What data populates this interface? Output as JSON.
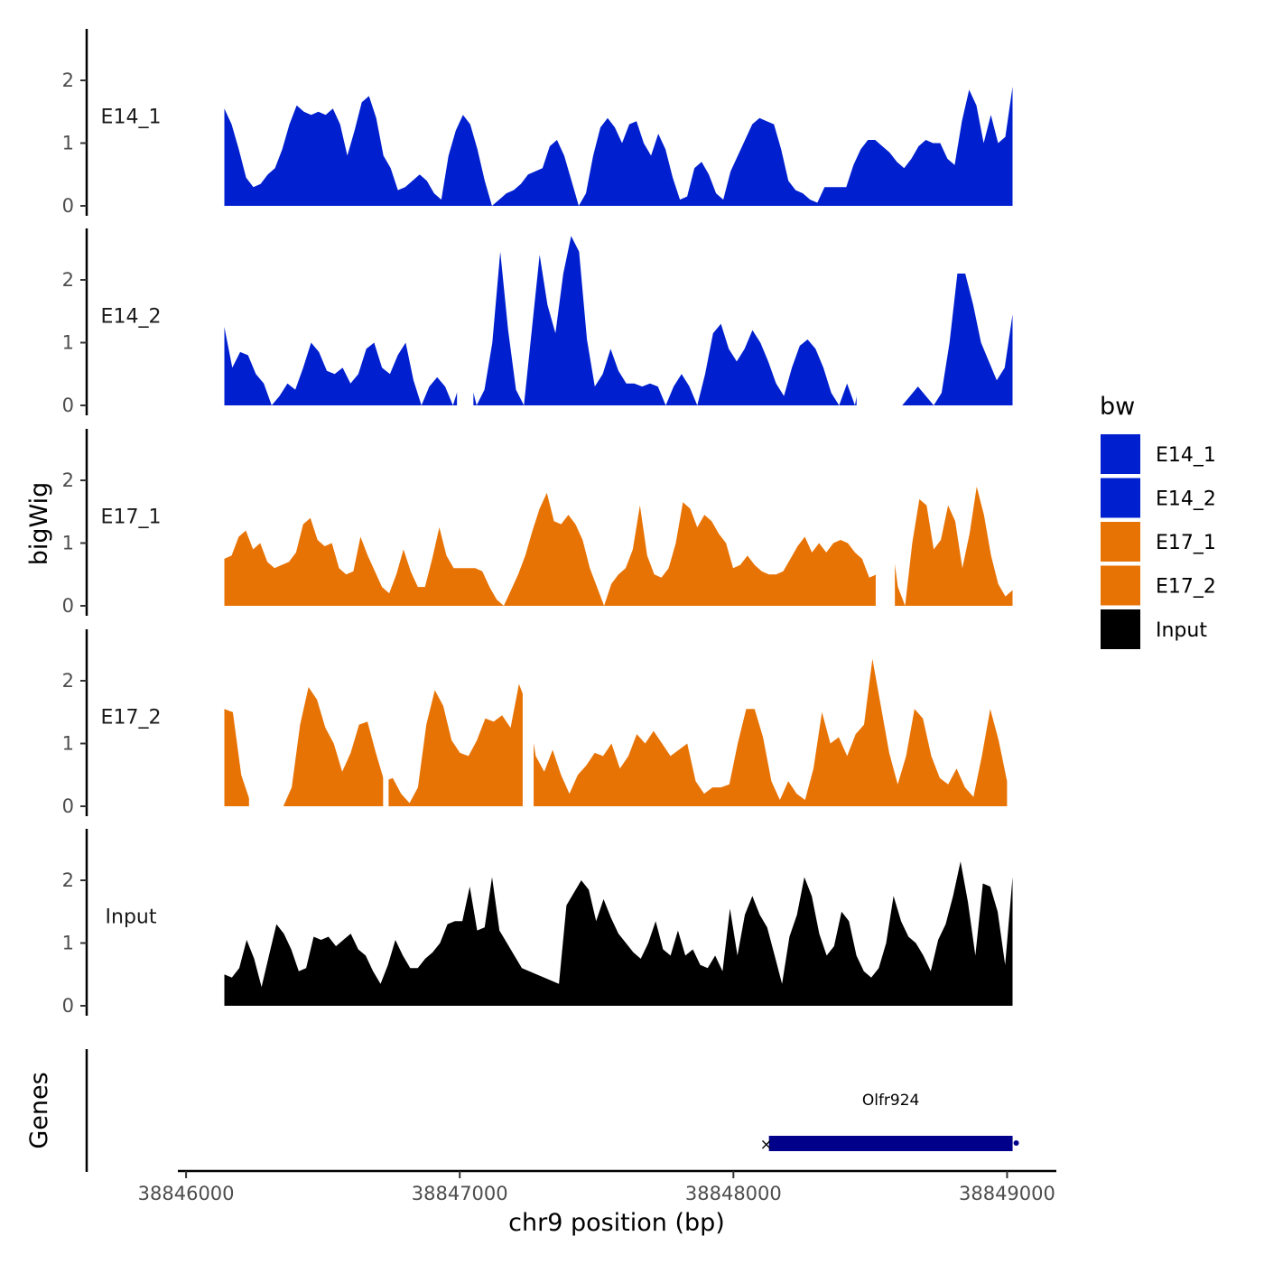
{
  "chart_data": {
    "type": "area",
    "description_free": true,
    "ylabel": "bigWig",
    "xlabel": "chr9 position (bp)",
    "ylim": [
      0,
      2.8
    ],
    "y_ticks": [
      0,
      1,
      2
    ],
    "y_tick_labels": [
      "0",
      "1",
      "2"
    ],
    "xlim": [
      38845970,
      38849180
    ],
    "x_ticks": [
      38846000,
      38847000,
      38848000,
      38849000
    ],
    "x_tick_labels": [
      "38846000",
      "38847000",
      "38848000",
      "38849000"
    ],
    "legend": {
      "title": "bw",
      "position": "right",
      "entries": [
        {
          "label": "E14_1",
          "color": "#0020d0"
        },
        {
          "label": "E14_2",
          "color": "#0020d0"
        },
        {
          "label": "E17_1",
          "color": "#e87305"
        },
        {
          "label": "E17_2",
          "color": "#e87305"
        },
        {
          "label": "Input",
          "color": "#000000"
        }
      ]
    },
    "series": [
      {
        "name": "E14_1",
        "color": "#0020d0",
        "x_start": 38846140,
        "x_end": 38849020,
        "values": [
          1.55,
          1.3,
          0.9,
          0.45,
          0.3,
          0.35,
          0.5,
          0.6,
          0.9,
          1.3,
          1.6,
          1.5,
          1.45,
          1.5,
          1.45,
          1.55,
          1.3,
          0.8,
          1.2,
          1.65,
          1.75,
          1.4,
          0.8,
          0.6,
          0.25,
          0.3,
          0.4,
          0.5,
          0.4,
          0.2,
          0.1,
          0.8,
          1.2,
          1.45,
          1.3,
          0.9,
          0.4,
          0.0,
          0.1,
          0.2,
          0.25,
          0.35,
          0.5,
          0.55,
          0.6,
          0.95,
          1.05,
          0.8,
          0.4,
          0.0,
          0.2,
          0.8,
          1.25,
          1.4,
          1.25,
          1.0,
          1.3,
          1.35,
          1.0,
          0.8,
          1.15,
          0.9,
          0.45,
          0.1,
          0.15,
          0.6,
          0.7,
          0.5,
          0.2,
          0.1,
          0.55,
          0.8,
          1.05,
          1.3,
          1.4,
          1.35,
          1.3,
          0.9,
          0.4,
          0.25,
          0.2,
          0.1,
          0.05,
          0.3,
          0.3,
          0.3,
          0.3,
          0.65,
          0.9,
          1.05,
          1.05,
          0.95,
          0.85,
          0.7,
          0.6,
          0.75,
          0.95,
          1.05,
          1.0,
          1.0,
          0.75,
          0.65,
          1.35,
          1.85,
          1.6,
          1.0,
          1.45,
          1.0,
          1.1,
          1.9
        ],
        "gaps": []
      },
      {
        "name": "E14_2",
        "color": "#0020d0",
        "x_start": 38846140,
        "x_end": 38849020,
        "values": [
          1.25,
          0.6,
          0.85,
          0.8,
          0.5,
          0.35,
          0.0,
          0.15,
          0.35,
          0.25,
          0.6,
          1.0,
          0.85,
          0.55,
          0.5,
          0.6,
          0.35,
          0.5,
          0.9,
          1.0,
          0.6,
          0.5,
          0.8,
          1.0,
          0.4,
          0.0,
          0.3,
          0.45,
          0.3,
          0.0,
          0.4,
          0.5,
          0.0,
          0.25,
          1.0,
          2.45,
          1.2,
          0.25,
          0.0,
          1.2,
          2.4,
          1.6,
          1.15,
          2.1,
          2.7,
          2.45,
          1.05,
          0.3,
          0.5,
          0.9,
          0.55,
          0.35,
          0.35,
          0.3,
          0.35,
          0.3,
          0.0,
          0.3,
          0.5,
          0.3,
          0.0,
          0.5,
          1.15,
          1.3,
          0.9,
          0.7,
          0.9,
          1.2,
          1.0,
          0.7,
          0.35,
          0.15,
          0.6,
          0.95,
          1.05,
          0.9,
          0.6,
          0.2,
          0.0,
          0.35,
          0.0,
          0.65,
          1.0,
          0.0,
          0.0,
          0.0,
          0.0,
          0.15,
          0.3,
          0.15,
          0.0,
          0.2,
          1.0,
          2.1,
          2.1,
          1.6,
          1.0,
          0.7,
          0.4,
          0.6,
          1.45
        ],
        "gaps": [
          [
            38846990,
            38847050
          ],
          [
            38848450,
            38848580
          ]
        ]
      },
      {
        "name": "E17_1",
        "color": "#e87305",
        "x_start": 38846140,
        "x_end": 38849020,
        "values": [
          0.75,
          0.8,
          1.1,
          1.2,
          0.9,
          1.0,
          0.7,
          0.6,
          0.65,
          0.7,
          0.85,
          1.3,
          1.4,
          1.05,
          0.95,
          1.0,
          0.6,
          0.5,
          0.55,
          1.1,
          0.8,
          0.55,
          0.3,
          0.2,
          0.5,
          0.9,
          0.55,
          0.3,
          0.3,
          0.75,
          1.25,
          0.8,
          0.6,
          0.6,
          0.6,
          0.6,
          0.55,
          0.3,
          0.1,
          0.0,
          0.25,
          0.5,
          0.8,
          1.2,
          1.55,
          1.8,
          1.35,
          1.3,
          1.45,
          1.3,
          1.05,
          0.6,
          0.3,
          0.0,
          0.35,
          0.5,
          0.6,
          0.9,
          1.6,
          0.8,
          0.5,
          0.45,
          0.6,
          1.0,
          1.65,
          1.55,
          1.25,
          1.45,
          1.35,
          1.15,
          1.0,
          0.6,
          0.65,
          0.8,
          0.65,
          0.55,
          0.5,
          0.5,
          0.55,
          0.75,
          0.95,
          1.1,
          0.85,
          1.0,
          0.85,
          1.0,
          1.05,
          1.0,
          0.85,
          0.75,
          0.45,
          0.5,
          0.9,
          1.15,
          0.3,
          0.0,
          1.0,
          1.7,
          1.6,
          0.9,
          1.05,
          1.6,
          1.35,
          0.6,
          1.15,
          1.9,
          1.45,
          0.8,
          0.35,
          0.15,
          0.25
        ],
        "gaps": [
          [
            38848520,
            38848590
          ]
        ]
      },
      {
        "name": "E17_2",
        "color": "#e87305",
        "x_start": 38846140,
        "x_end": 38849000,
        "values": [
          1.55,
          1.5,
          0.5,
          0.1,
          0.0,
          0.0,
          0.0,
          0.0,
          0.3,
          1.3,
          1.9,
          1.7,
          1.25,
          1.0,
          0.55,
          0.85,
          1.3,
          1.35,
          0.85,
          0.4,
          0.45,
          0.2,
          0.05,
          0.3,
          1.3,
          1.85,
          1.6,
          1.05,
          0.85,
          0.8,
          1.05,
          1.4,
          1.35,
          1.45,
          1.25,
          1.95,
          1.6,
          0.8,
          0.55,
          0.9,
          0.5,
          0.2,
          0.5,
          0.65,
          0.85,
          0.8,
          1.0,
          0.6,
          0.8,
          1.15,
          1.0,
          1.2,
          1.0,
          0.8,
          0.9,
          1.0,
          0.4,
          0.2,
          0.3,
          0.3,
          0.35,
          1.0,
          1.55,
          1.55,
          1.1,
          0.4,
          0.1,
          0.4,
          0.2,
          0.1,
          0.6,
          1.5,
          1.0,
          1.1,
          0.8,
          1.15,
          1.3,
          2.35,
          1.6,
          0.85,
          0.35,
          0.8,
          1.55,
          1.4,
          0.8,
          0.45,
          0.35,
          0.6,
          0.3,
          0.15,
          0.8,
          1.55,
          1.05,
          0.4
        ],
        "gaps": [
          [
            38846230,
            38846320
          ],
          [
            38846720,
            38846740
          ],
          [
            38847230,
            38847270
          ]
        ]
      },
      {
        "name": "Input",
        "color": "#000000",
        "x_start": 38846140,
        "x_end": 38849020,
        "values": [
          0.5,
          0.45,
          0.6,
          1.05,
          0.75,
          0.3,
          0.8,
          1.3,
          1.15,
          0.9,
          0.55,
          0.6,
          1.1,
          1.05,
          1.1,
          0.95,
          1.05,
          1.15,
          0.9,
          0.8,
          0.55,
          0.35,
          0.65,
          1.05,
          0.8,
          0.6,
          0.6,
          0.75,
          0.85,
          1.0,
          1.3,
          1.35,
          1.35,
          1.9,
          1.2,
          1.25,
          2.05,
          1.2,
          1.0,
          0.8,
          0.6,
          0.55,
          0.5,
          0.45,
          0.4,
          0.35,
          1.6,
          1.8,
          2.0,
          1.85,
          1.35,
          1.7,
          1.4,
          1.15,
          1.0,
          0.85,
          0.75,
          1.0,
          1.35,
          0.9,
          0.8,
          1.2,
          0.8,
          0.9,
          0.65,
          0.6,
          0.8,
          0.55,
          1.55,
          0.8,
          1.45,
          1.75,
          1.45,
          1.25,
          0.8,
          0.35,
          1.1,
          1.45,
          2.05,
          1.75,
          1.15,
          0.8,
          0.95,
          1.5,
          1.35,
          0.8,
          0.55,
          0.45,
          0.6,
          1.0,
          1.75,
          1.35,
          1.1,
          1.0,
          0.8,
          0.55,
          1.05,
          1.3,
          1.75,
          2.3,
          1.65,
          0.8,
          1.95,
          1.9,
          1.5,
          0.65,
          2.05
        ],
        "gaps": []
      }
    ],
    "genes": [
      {
        "name": "Olfr924",
        "start": 38848110,
        "end": 38849040,
        "strand": "-",
        "color": "#00008b"
      }
    ],
    "gene_track_label": "Genes"
  }
}
